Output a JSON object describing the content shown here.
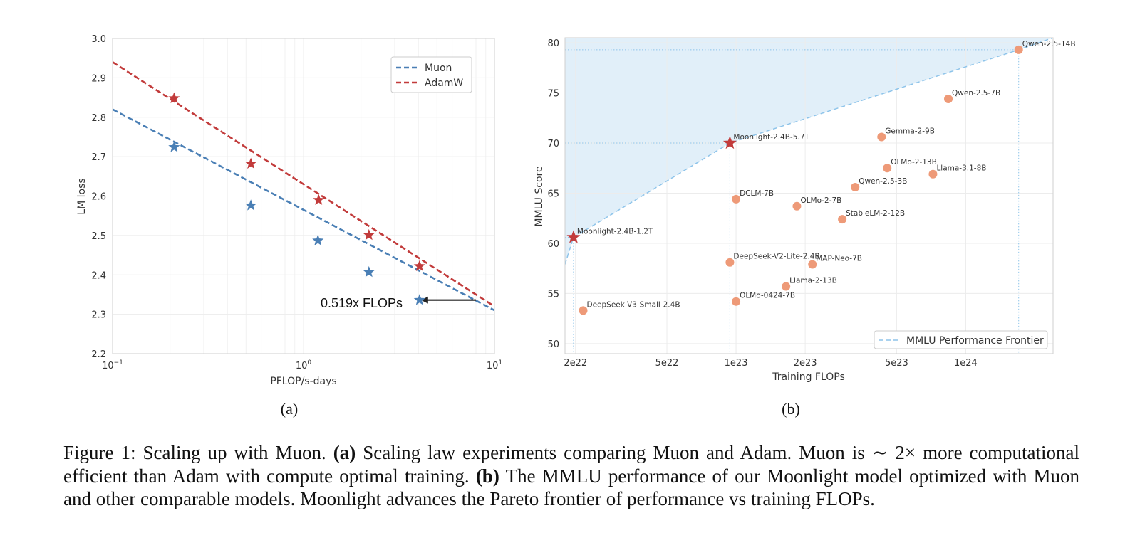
{
  "colors": {
    "muon": "#4a7fb5",
    "adamw": "#c23b3b",
    "point": "#ee9a78",
    "frontier": "#8ec4ea",
    "fill": "#e1eff9",
    "grid": "#ececec",
    "axis": "#cfcfcf"
  },
  "chart_data": [
    {
      "id": "a",
      "type": "line",
      "xscale": "log",
      "xlabel": "PFLOP/s-days",
      "ylabel": "LM loss",
      "xlim": [
        0.1,
        10
      ],
      "ylim": [
        2.2,
        3.0
      ],
      "yticks": [
        "2.2",
        "2.3",
        "2.4",
        "2.5",
        "2.6",
        "2.7",
        "2.8",
        "2.9",
        "3.0"
      ],
      "xticks": [
        {
          "base": "10",
          "exp": "−1",
          "value": 0.1
        },
        {
          "base": "10",
          "exp": "0",
          "value": 1
        },
        {
          "base": "10",
          "exp": "1",
          "value": 10
        }
      ],
      "grid": true,
      "legend_position": "top-right",
      "series": [
        {
          "name": "Muon",
          "fit": {
            "a": 2.565,
            "b": -0.255
          },
          "points": [
            {
              "x": 0.21,
              "y": 2.724
            },
            {
              "x": 0.53,
              "y": 2.576
            },
            {
              "x": 1.19,
              "y": 2.487
            },
            {
              "x": 2.2,
              "y": 2.407
            },
            {
              "x": 4.05,
              "y": 2.336
            }
          ]
        },
        {
          "name": "AdamW",
          "fit": {
            "a": 2.63,
            "b": -0.31
          },
          "points": [
            {
              "x": 0.21,
              "y": 2.848
            },
            {
              "x": 0.53,
              "y": 2.682
            },
            {
              "x": 1.2,
              "y": 2.59
            },
            {
              "x": 2.2,
              "y": 2.501
            },
            {
              "x": 4.05,
              "y": 2.422
            }
          ]
        }
      ],
      "annotation": {
        "text": "0.519x FLOPs",
        "arrow_from": {
          "x": 8.0,
          "y": 2.336
        },
        "arrow_to": {
          "x": 4.05,
          "y": 2.336
        }
      },
      "panel_label": "(a)"
    },
    {
      "id": "b",
      "type": "scatter",
      "xscale": "log",
      "xlabel": "Training FLOPs",
      "ylabel": "MMLU Score",
      "xlim": [
        1.8e+22,
        2.4e+24
      ],
      "ylim": [
        49,
        80.5
      ],
      "yticks": [
        50,
        55,
        60,
        65,
        70,
        75,
        80
      ],
      "xticks": [
        {
          "label": "2e22",
          "value": 2e+22
        },
        {
          "label": "5e22",
          "value": 5e+22
        },
        {
          "label": "1e23",
          "value": 1e+23
        },
        {
          "label": "2e23",
          "value": 2e+23
        },
        {
          "label": "5e23",
          "value": 5e+23
        },
        {
          "label": "1e24",
          "value": 1e+24
        }
      ],
      "grid": true,
      "legend": "MMLU Performance Frontier",
      "legend_position": "bottom-right",
      "frontier": [
        {
          "x": 1.8e+22,
          "y": 57.9
        },
        {
          "x": 1.96e+22,
          "y": 60.6
        },
        {
          "x": 9.4e+22,
          "y": 70.0
        },
        {
          "x": 1.7e+24,
          "y": 79.3
        },
        {
          "x": 2.4e+24,
          "y": 80.5
        }
      ],
      "moonlight": [
        {
          "name": "Moonlight-2.4B-1.2T",
          "x": 1.96e+22,
          "y": 60.6
        },
        {
          "name": "Moonlight-2.4B-5.7T",
          "x": 9.4e+22,
          "y": 70.0
        }
      ],
      "models": [
        {
          "name": "Qwen-2.5-14B",
          "x": 1.7e+24,
          "y": 79.3
        },
        {
          "name": "Qwen-2.5-7B",
          "x": 8.4e+23,
          "y": 74.4
        },
        {
          "name": "Gemma-2-9B",
          "x": 4.3e+23,
          "y": 70.6
        },
        {
          "name": "OLMo-2-13B",
          "x": 4.55e+23,
          "y": 67.5
        },
        {
          "name": "Llama-3.1-8B",
          "x": 7.2e+23,
          "y": 66.9
        },
        {
          "name": "Qwen-2.5-3B",
          "x": 3.3e+23,
          "y": 65.6
        },
        {
          "name": "DCLM-7B",
          "x": 1e+23,
          "y": 64.4
        },
        {
          "name": "OLMo-2-7B",
          "x": 1.84e+23,
          "y": 63.7
        },
        {
          "name": "StableLM-2-12B",
          "x": 2.9e+23,
          "y": 62.4
        },
        {
          "name": "DeepSeek-V2-Lite-2.4B",
          "x": 9.4e+22,
          "y": 58.1
        },
        {
          "name": "MAP-Neo-7B",
          "x": 2.15e+23,
          "y": 57.9
        },
        {
          "name": "Llama-2-13B",
          "x": 1.65e+23,
          "y": 55.7
        },
        {
          "name": "OLMo-0424-7B",
          "x": 1e+23,
          "y": 54.2
        },
        {
          "name": "DeepSeek-V3-Small-2.4B",
          "x": 2.16e+22,
          "y": 53.3
        }
      ],
      "panel_label": "(b)"
    }
  ],
  "caption": {
    "prefix": "Figure 1: Scaling up with Muon.",
    "a_label": "(a)",
    "a_text": "Scaling law experiments comparing Muon and Adam. Muon is ∼ 2× more computational efficient than Adam with compute optimal training.",
    "b_label": "(b)",
    "b_text": "The MMLU performance of our Moonlight model optimized with Muon and other comparable models. Moonlight advances the Pareto frontier of performance vs training FLOPs."
  }
}
